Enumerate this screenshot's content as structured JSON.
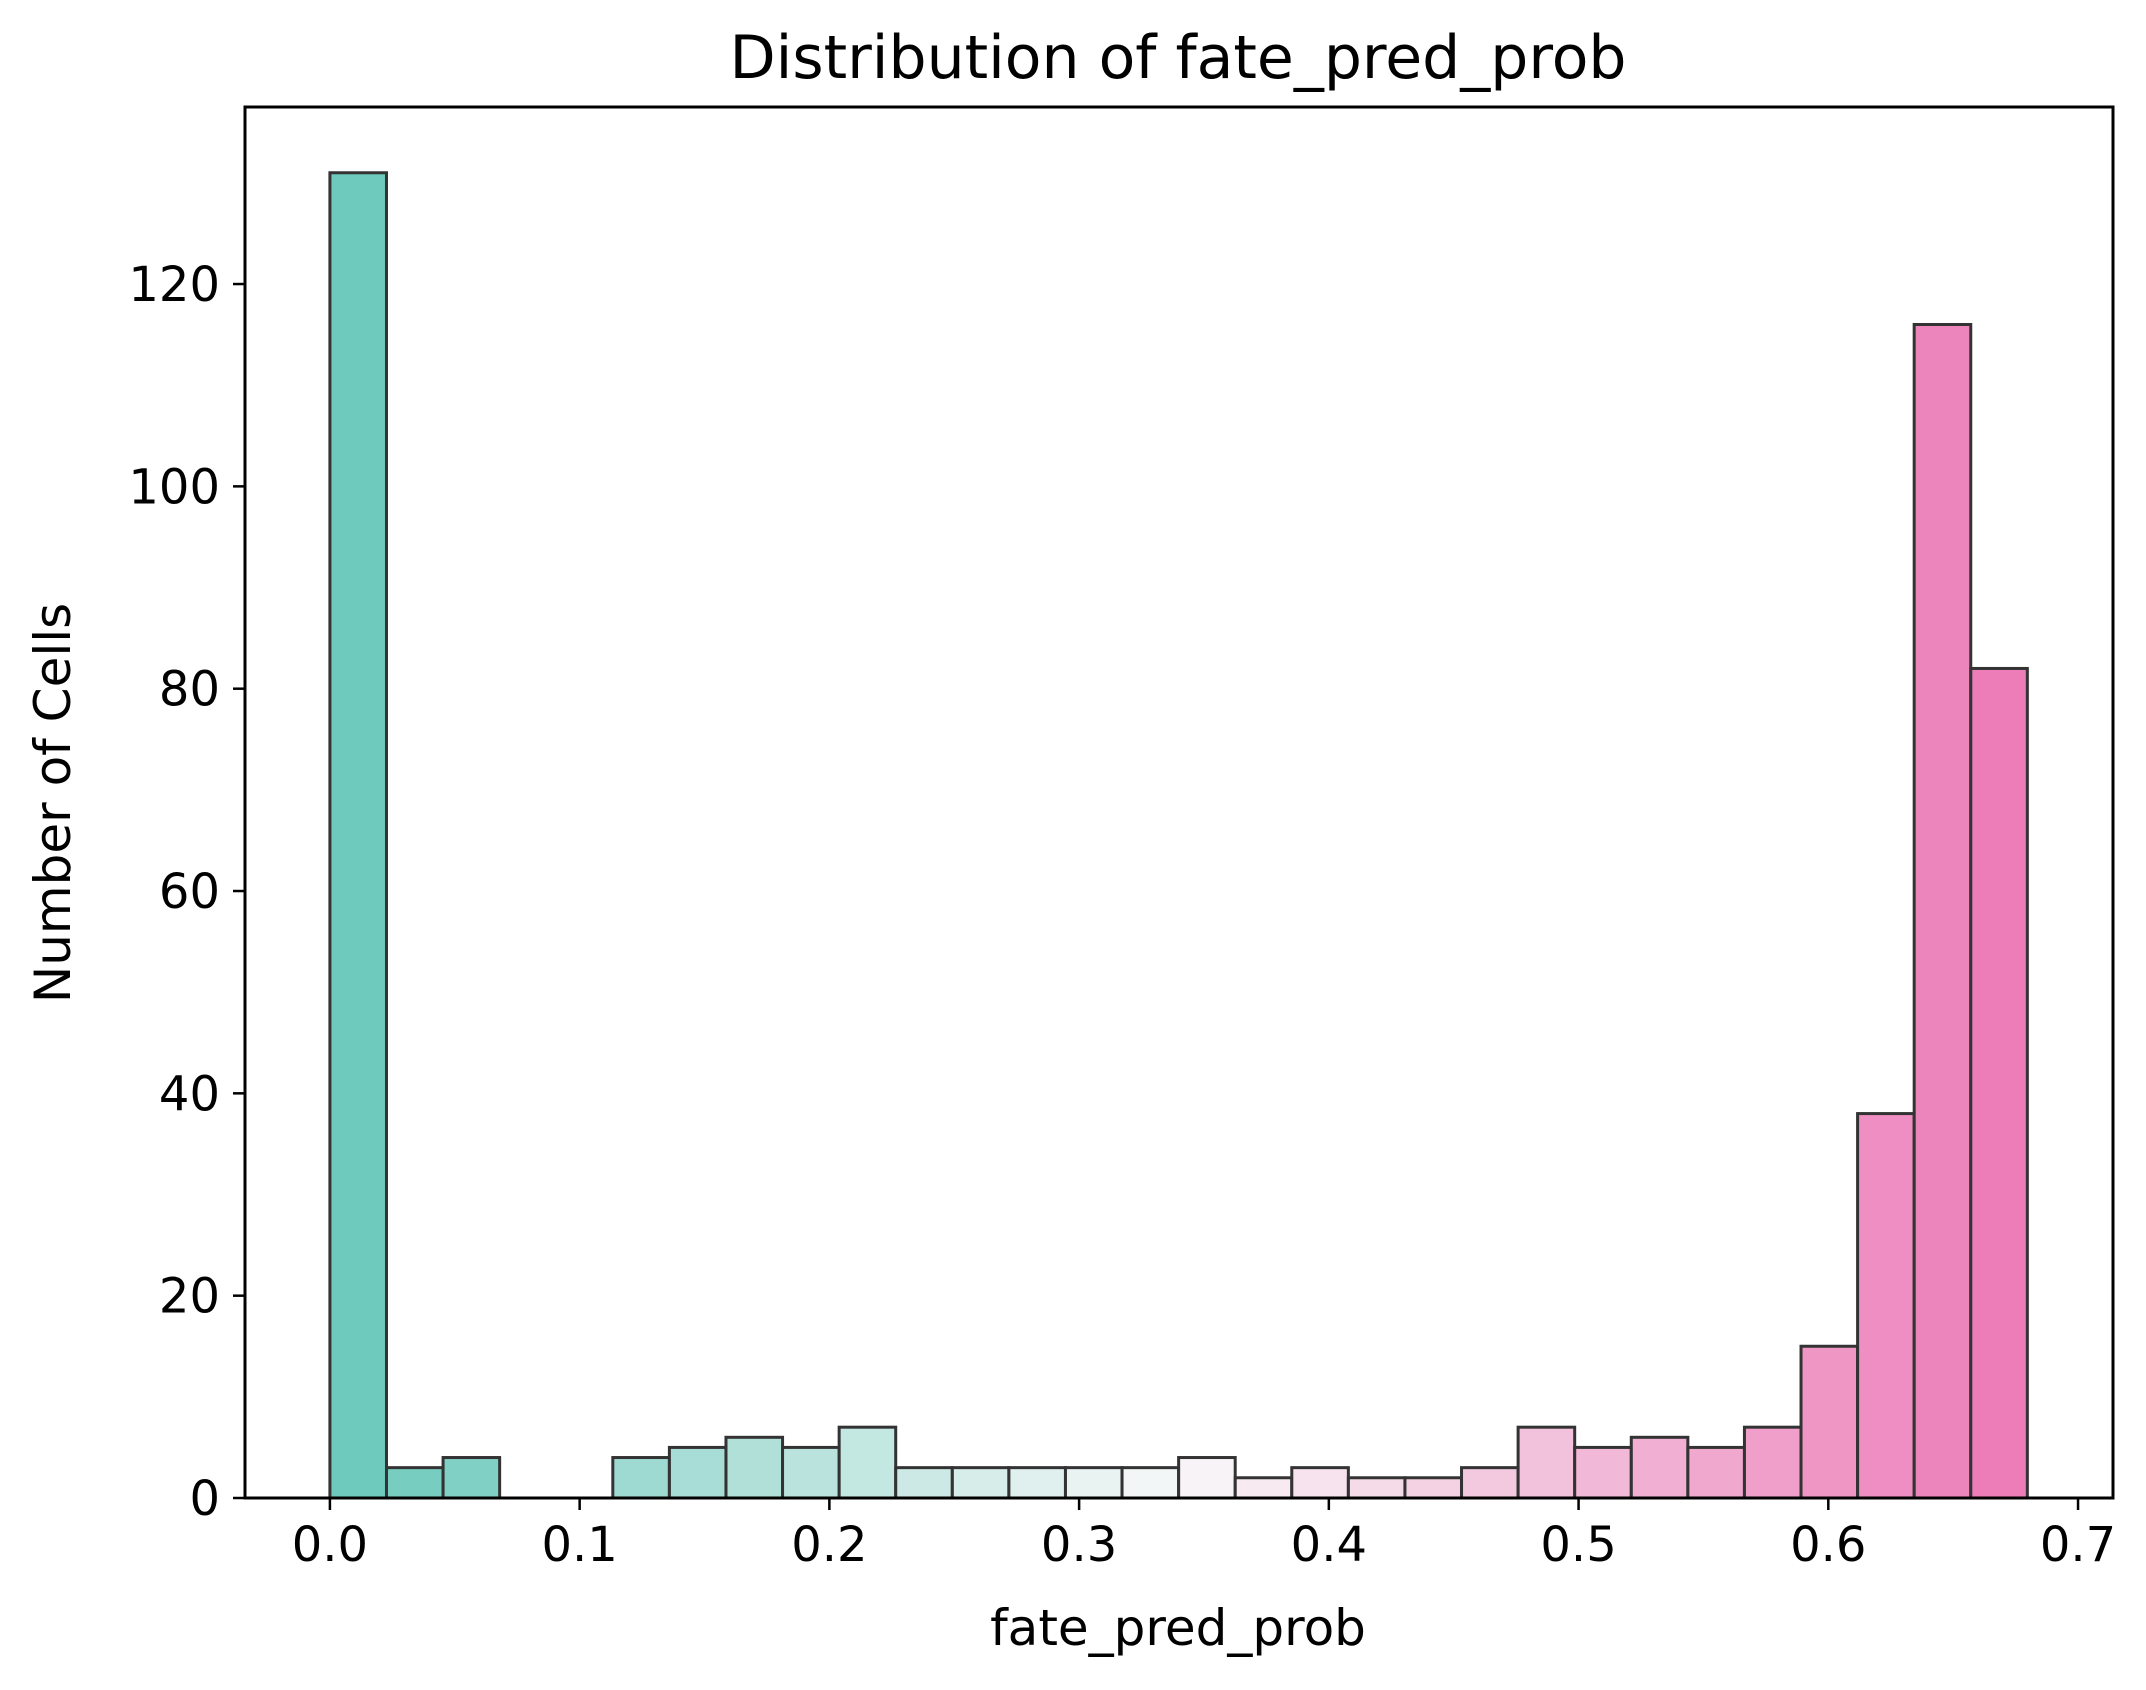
{
  "chart_data": {
    "type": "bar",
    "title": "Distribution of fate_pred_prob",
    "xlabel": "fate_pred_prob",
    "ylabel": "Number of Cells",
    "xlim": [
      -0.034,
      0.714
    ],
    "ylim": [
      0,
      137.5
    ],
    "xticks": [
      0.0,
      0.1,
      0.2,
      0.3,
      0.4,
      0.5,
      0.6,
      0.7
    ],
    "xtick_labels": [
      "0.0",
      "0.1",
      "0.2",
      "0.3",
      "0.4",
      "0.5",
      "0.6",
      "0.7"
    ],
    "yticks": [
      0,
      20,
      40,
      60,
      80,
      100,
      120
    ],
    "ytick_labels": [
      "0",
      "20",
      "40",
      "60",
      "80",
      "100",
      "120"
    ],
    "grid": false,
    "bin_range": [
      0.0,
      0.6797
    ],
    "bin_count": 30,
    "counts": [
      131,
      3,
      4,
      0,
      0,
      4,
      5,
      6,
      5,
      7,
      3,
      3,
      3,
      3,
      3,
      4,
      2,
      3,
      2,
      2,
      3,
      7,
      5,
      6,
      5,
      7,
      15,
      38,
      116,
      82
    ],
    "colormap_stops": [
      "#5ec4b6",
      "#f7f7f7",
      "#ea6fb1"
    ],
    "bar_edge_color": "#333333",
    "bar_alpha": 0.9
  }
}
